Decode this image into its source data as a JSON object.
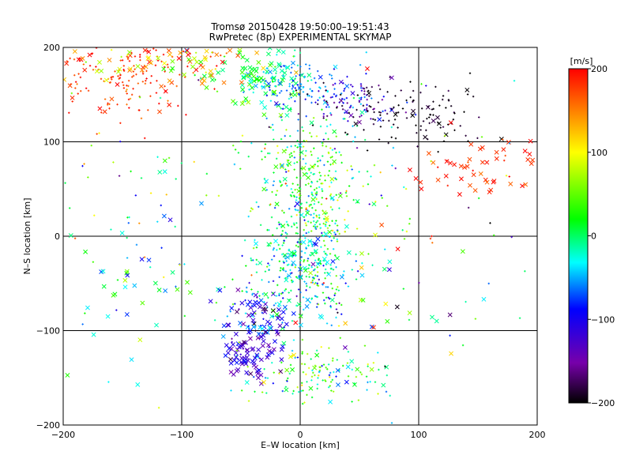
{
  "chart_data": {
    "type": "scatter",
    "title": "Tromsø 20150428 19:50:00–19:51:43",
    "subtitle": "RwPretec (8p) EXPERIMENTAL SKYMAP",
    "xlabel": "E–W location [km]",
    "ylabel": "N–S location [km]",
    "xlim": [
      -200,
      200
    ],
    "ylim": [
      -200,
      200
    ],
    "grid": true,
    "xticks": [
      -200,
      -100,
      0,
      100,
      200
    ],
    "yticks": [
      -200,
      -100,
      0,
      100,
      200
    ],
    "xtick_labels": [
      "−200",
      "−100",
      "0",
      "100",
      "200"
    ],
    "ytick_labels": [
      "−200",
      "−100",
      "0",
      "100",
      "200"
    ],
    "colorbar": {
      "label": "[m/s]",
      "range": [
        -200,
        200
      ],
      "ticks": [
        -200,
        -100,
        0,
        100,
        200
      ],
      "tick_labels": [
        "−200",
        "−100",
        "0",
        "100",
        "200"
      ],
      "scale": "rainbow",
      "colors": [
        "#000000",
        "#7700aa",
        "#0000ff",
        "#00ffff",
        "#00ff00",
        "#ffff00",
        "#ff0000"
      ]
    },
    "clusters": [
      {
        "x": 0,
        "y": -25,
        "dx": 20,
        "dy": 22,
        "n": 260,
        "v": -20,
        "dv": 40,
        "marker": "+"
      },
      {
        "x": 2,
        "y": 72,
        "dx": 24,
        "dy": 28,
        "n": 210,
        "v": 18,
        "dv": 40,
        "marker": "+"
      },
      {
        "x": 15,
        "y": 22,
        "dx": 15,
        "dy": 20,
        "n": 110,
        "v": 10,
        "dv": 55,
        "marker": "+"
      },
      {
        "x": -28,
        "y": 165,
        "dx": 18,
        "dy": 16,
        "n": 90,
        "v": 10,
        "dv": 25,
        "marker": "x"
      },
      {
        "x": -5,
        "y": 160,
        "dx": 20,
        "dy": 14,
        "n": 120,
        "v": -55,
        "dv": 25,
        "marker": "+"
      },
      {
        "x": 40,
        "y": 140,
        "dx": 22,
        "dy": 14,
        "n": 110,
        "v": -120,
        "dv": 40,
        "marker": "+"
      },
      {
        "x": 90,
        "y": 130,
        "dx": 32,
        "dy": 16,
        "n": 120,
        "v": -195,
        "dv": 10,
        "marker": "+"
      },
      {
        "x": -150,
        "y": 170,
        "dx": 35,
        "dy": 22,
        "n": 170,
        "v": 180,
        "dv": 20,
        "marker": "+"
      },
      {
        "x": -130,
        "y": 185,
        "dx": 45,
        "dy": 12,
        "n": 55,
        "v": 155,
        "dv": 60,
        "marker": "x"
      },
      {
        "x": -80,
        "y": 180,
        "dx": 25,
        "dy": 12,
        "n": 45,
        "v": 110,
        "dv": 90,
        "marker": "x"
      },
      {
        "x": 155,
        "y": 70,
        "dx": 30,
        "dy": 18,
        "n": 55,
        "v": 185,
        "dv": 15,
        "marker": "x"
      },
      {
        "x": -35,
        "y": -90,
        "dx": 15,
        "dy": 16,
        "n": 90,
        "v": -100,
        "dv": 45,
        "marker": "x"
      },
      {
        "x": -45,
        "y": -125,
        "dx": 10,
        "dy": 13,
        "n": 75,
        "v": -120,
        "dv": 25,
        "marker": "x"
      },
      {
        "x": 10,
        "y": -145,
        "dx": 30,
        "dy": 18,
        "n": 140,
        "v": 20,
        "dv": 50,
        "marker": "+"
      },
      {
        "x": -10,
        "y": -70,
        "dx": 28,
        "dy": 16,
        "n": 80,
        "v": -30,
        "dv": 45,
        "marker": "+"
      },
      {
        "x": -130,
        "y": -40,
        "dx": 40,
        "dy": 60,
        "n": 45,
        "v": -20,
        "dv": 60,
        "marker": "x"
      },
      {
        "x": 60,
        "y": -80,
        "dx": 35,
        "dy": 60,
        "n": 35,
        "v": 30,
        "dv": 100,
        "marker": "x"
      },
      {
        "x": -160,
        "y": 40,
        "dx": 35,
        "dy": 50,
        "n": 30,
        "v": 40,
        "dv": 70,
        "marker": "+"
      },
      {
        "x": 50,
        "y": 50,
        "dx": 40,
        "dy": 40,
        "n": 45,
        "v": 20,
        "dv": 80,
        "marker": "+"
      },
      {
        "x": 0,
        "y": 0,
        "dx": 130,
        "dy": 130,
        "n": 120,
        "v": 0,
        "dv": 110,
        "marker": "+"
      }
    ]
  }
}
